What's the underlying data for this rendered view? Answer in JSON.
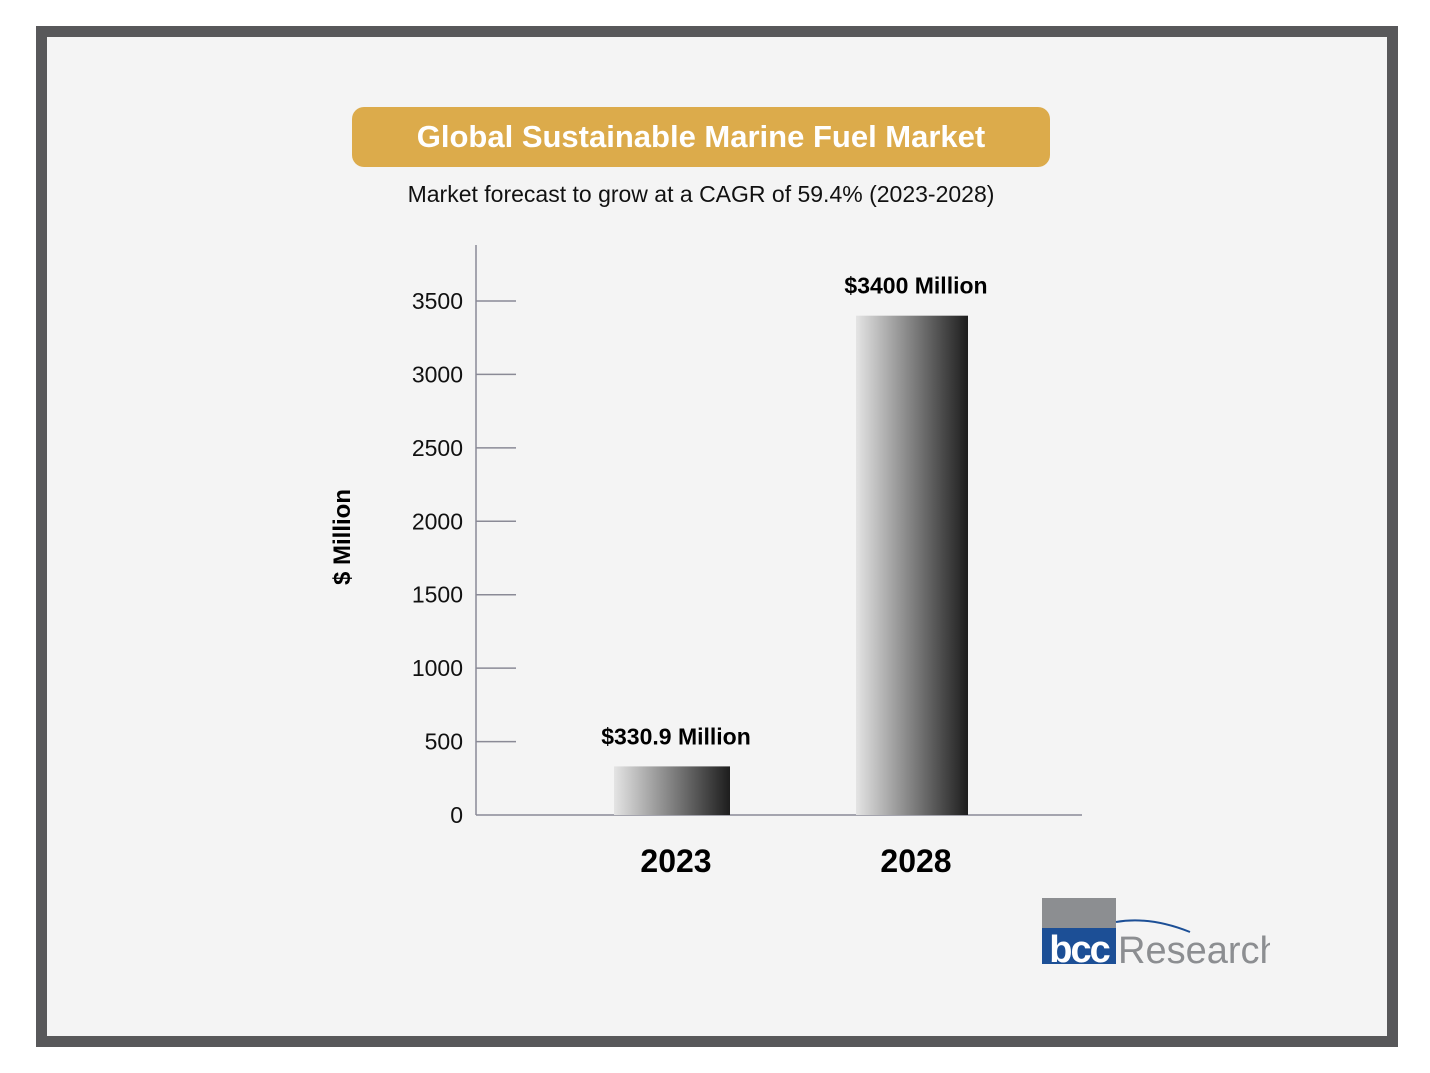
{
  "colors": {
    "frame": "#58585a",
    "background": "#f4f4f4",
    "title_bg": "#dcab4b",
    "title_text": "#ffffff",
    "axis": "#8a8a96",
    "bar_light": "#e4e4e4",
    "bar_dark": "#1d1d1d",
    "logo_blue": "#1c4f96",
    "logo_gray": "#8c8e91"
  },
  "chart_data": {
    "type": "bar",
    "title": "Global Sustainable Marine Fuel Market",
    "subtitle": "Market forecast to grow at a CAGR of 59.4% (2023-2028)",
    "ylabel": "$ Million",
    "xlabel": "",
    "categories": [
      "2023",
      "2028"
    ],
    "values": [
      330.9,
      3400
    ],
    "data_labels": [
      "$330.9 Million",
      "$3400 Million"
    ],
    "yticks": [
      "0",
      "500",
      "1000",
      "1500",
      "2000",
      "2500",
      "3000",
      "3500"
    ],
    "ylim": [
      0,
      3900
    ],
    "grid": false,
    "legend": "none"
  },
  "logo": {
    "mark": "bcc",
    "text": "Research"
  }
}
